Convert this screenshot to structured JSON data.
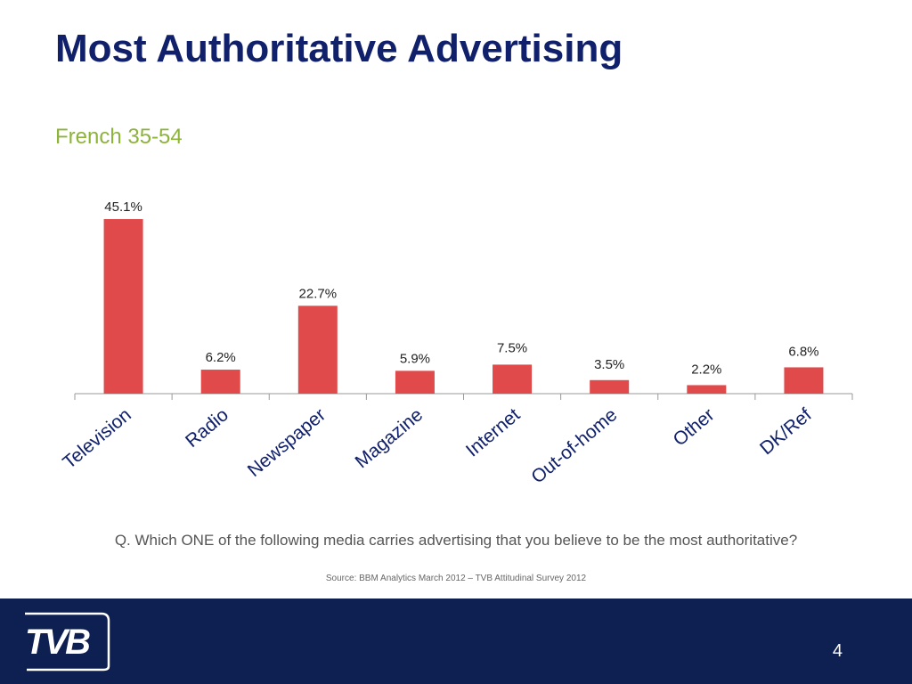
{
  "slide": {
    "title": "Most Authoritative Advertising",
    "subtitle": "French 35-54",
    "question": "Q. Which ONE of the following media carries advertising that you believe to be the most authoritative?",
    "source": "Source: BBM Analytics March 2012 – TVB Attitudinal Survey 2012",
    "page_number": "4",
    "logo_text": "TVB"
  },
  "colors": {
    "bar": "#e04a4a",
    "title": "#10206a",
    "subtitle": "#8db33a",
    "footer": "#0e1f52"
  },
  "chart_data": {
    "type": "bar",
    "categories": [
      "Television",
      "Radio",
      "Newspaper",
      "Magazine",
      "Internet",
      "Out-of-home",
      "Other",
      "DK/Ref"
    ],
    "values": [
      45.1,
      6.2,
      22.7,
      5.9,
      7.5,
      3.5,
      2.2,
      6.8
    ],
    "value_labels": [
      "45.1%",
      "6.2%",
      "22.7%",
      "5.9%",
      "7.5%",
      "3.5%",
      "2.2%",
      "6.8%"
    ],
    "units": "%",
    "ylim": [
      0,
      45.1
    ],
    "grid": false,
    "legend": "none"
  }
}
